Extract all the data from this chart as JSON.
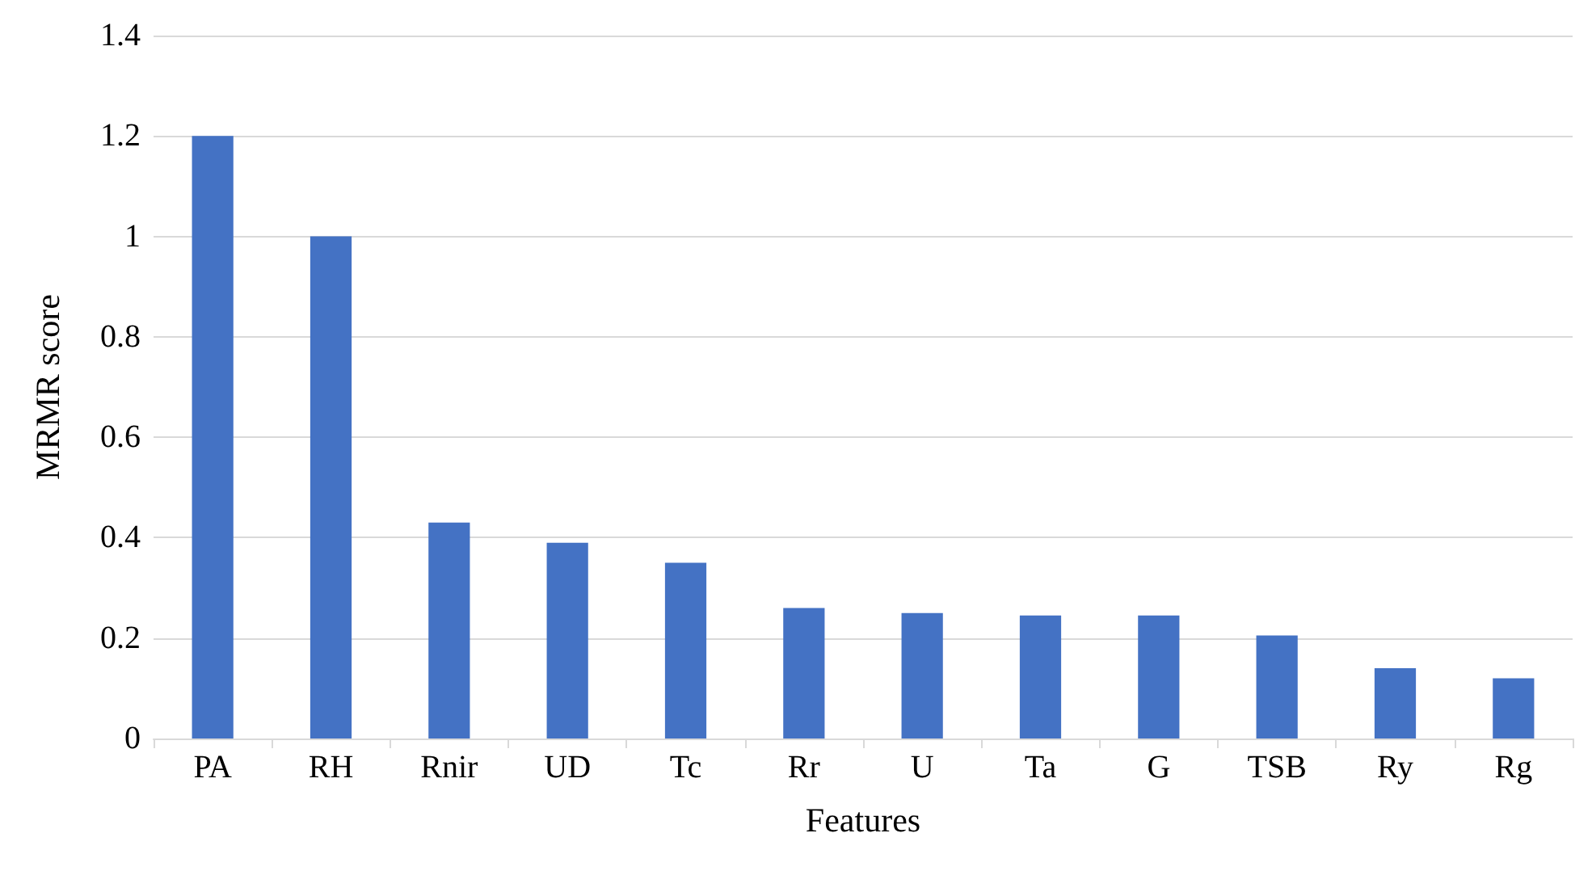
{
  "chart_data": {
    "type": "bar",
    "xlabel": "Features",
    "ylabel": "MRMR score",
    "categories": [
      "PA",
      "RH",
      "Rnir",
      "UD",
      "Tc",
      "Rr",
      "U",
      "Ta",
      "G",
      "TSB",
      "Ry",
      "Rg"
    ],
    "values": [
      1.2,
      1.0,
      0.43,
      0.39,
      0.35,
      0.26,
      0.25,
      0.245,
      0.245,
      0.205,
      0.14,
      0.12
    ],
    "color": "#4472c4",
    "ylim": [
      0,
      1.4
    ],
    "yticks": [
      0,
      0.2,
      0.4,
      0.6,
      0.8,
      1,
      1.2,
      1.4
    ],
    "grid": "y"
  }
}
